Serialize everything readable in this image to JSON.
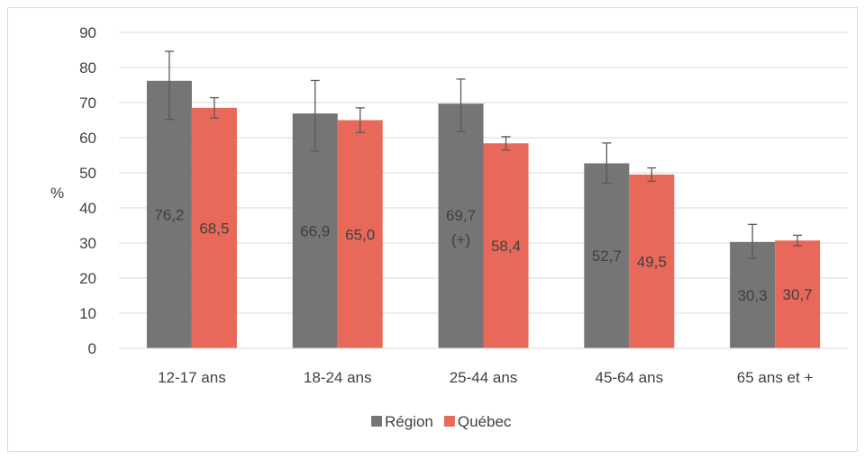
{
  "chart_data": {
    "type": "bar",
    "categories": [
      "12-17 ans",
      "18-24 ans",
      "25-44 ans",
      "45-64 ans",
      "65 ans et +"
    ],
    "series": [
      {
        "name": "Région",
        "color": "#757575",
        "values": [
          76.2,
          66.9,
          69.7,
          52.7,
          30.3
        ],
        "labels": [
          "76,2",
          "66,9",
          "69,7",
          "52,7",
          "30,3"
        ],
        "sublabels": [
          "",
          "",
          "(+)",
          "",
          ""
        ],
        "error_low": [
          65.2,
          56.2,
          61.8,
          47.0,
          25.6
        ],
        "error_high": [
          84.6,
          76.3,
          76.7,
          58.5,
          35.3
        ]
      },
      {
        "name": "Québec",
        "color": "#e8695a",
        "values": [
          68.5,
          65.0,
          58.4,
          49.5,
          30.7
        ],
        "labels": [
          "68,5",
          "65,0",
          "58,4",
          "49,5",
          "30,7"
        ],
        "sublabels": [
          "",
          "",
          "",
          "",
          ""
        ],
        "error_low": [
          65.6,
          61.5,
          56.5,
          47.6,
          29.2
        ],
        "error_high": [
          71.4,
          68.5,
          60.3,
          51.4,
          32.2
        ]
      }
    ],
    "ylabel": "%",
    "ylim": [
      0,
      90
    ],
    "yticks": [
      "0",
      "10",
      "20",
      "30",
      "40",
      "50",
      "60",
      "70",
      "80",
      "90"
    ],
    "grid": true,
    "legend_position": "bottom"
  }
}
